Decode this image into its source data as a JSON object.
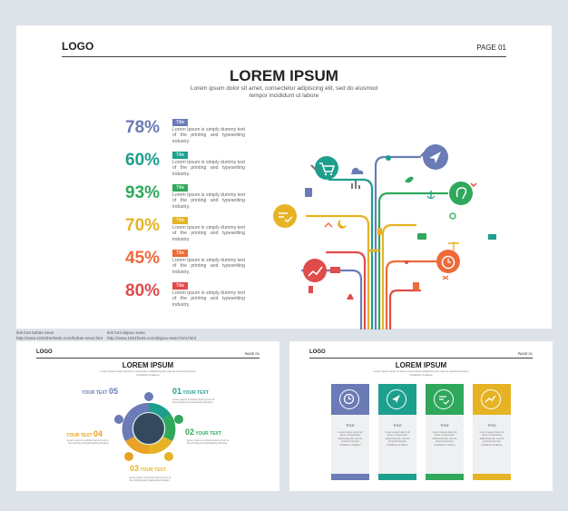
{
  "main": {
    "logo": "LOGO",
    "page": "PAGE 01",
    "title": "LOREM IPSUM",
    "subtitle": "Lorem ipsum dolor sit amet, consectetur adipiscing elit, sed do eiusmod tempor incididunt ut labore",
    "stats": [
      {
        "value": "78%",
        "tag": "Title",
        "text": "Lorem Ipsum is simply dummy text of the printing and typesetting industry.",
        "color": "#6b7bb6"
      },
      {
        "value": "60%",
        "tag": "Title",
        "text": "Lorem Ipsum is simply dummy text of the printing and typesetting industry.",
        "color": "#1d9f8e"
      },
      {
        "value": "93%",
        "tag": "Title",
        "text": "Lorem Ipsum is simply dummy text of the printing and typesetting industry.",
        "color": "#2fa85c"
      },
      {
        "value": "70%",
        "tag": "Title",
        "text": "Lorem Ipsum is simply dummy text of the printing and typesetting industry.",
        "color": "#e6b325"
      },
      {
        "value": "45%",
        "tag": "Title",
        "text": "Lorem Ipsum is simply dummy text of the printing and typesetting industry.",
        "color": "#ee6a3a"
      },
      {
        "value": "80%",
        "tag": "Title",
        "text": "Lorem Ipsum is simply dummy text of the printing and typesetting industry.",
        "color": "#e04b4b"
      }
    ]
  },
  "credits": {
    "left": "link font bebas neue\nhttp://www.1001freefonts.com/bebas-neue.font",
    "right": "link font dejavu sans\nhttp://www.1001fonts.com/dejavu-sans-font.html"
  },
  "slide_b": {
    "logo": "LOGO",
    "page": "PAGE 01",
    "title": "LOREM IPSUM",
    "subtitle": "Lorem ipsum dolor sit amet, consectetur adipiscing elit, sed do eiusmod tempor incididunt ut labore",
    "items": [
      {
        "num": "05",
        "label": "YOUR TEXT",
        "text": "Lorem Ipsum is simply dummy text of the printing and typesetting industry.",
        "color": "#6b7bb6"
      },
      {
        "num": "01",
        "label": "YOUR TEXT",
        "text": "Lorem Ipsum is simply dummy text of the printing and typesetting industry.",
        "color": "#1d9f8e"
      },
      {
        "num": "04",
        "label": "YOUR TEXT",
        "text": "Lorem Ipsum is simply dummy text of the printing and typesetting industry.",
        "color": "#e6a325"
      },
      {
        "num": "02",
        "label": "YOUR TEXT",
        "text": "Lorem Ipsum is simply dummy text of the printing and typesetting industry.",
        "color": "#2fa85c"
      },
      {
        "num": "03",
        "label": "YOUR TEXT",
        "text": "Lorem Ipsum is simply dummy text of the printing and typesetting industry.",
        "color": "#e6b325"
      }
    ]
  },
  "slide_c": {
    "logo": "LOGO",
    "page": "PAGE 01",
    "title": "LOREM IPSUM",
    "subtitle": "Lorem ipsum dolor sit amet, consectetur adipiscing elit, sed do eiusmod tempor incididunt ut labore",
    "columns": [
      {
        "title": "TITLE",
        "text": "Lorem ipsum dolor sit amet, consectetur adipiscing elit, sed do eiusmod tempor incididunt ut labore",
        "color": "#6b7bb6",
        "icon": "clock-icon"
      },
      {
        "title": "TITLE",
        "text": "Lorem ipsum dolor sit amet, consectetur adipiscing elit, sed do eiusmod tempor incididunt ut labore",
        "color": "#1d9f8e",
        "icon": "navigation-icon"
      },
      {
        "title": "TITLE",
        "text": "Lorem ipsum dolor sit amet, consectetur adipiscing elit, sed do eiusmod tempor incididunt ut labore",
        "color": "#2fa85c",
        "icon": "checklist-icon"
      },
      {
        "title": "TITLE",
        "text": "Lorem ipsum dolor sit amet, consectetur adipiscing elit, sed do eiusmod tempor incididunt ut labore",
        "color": "#e6b325",
        "icon": "growth-chart-icon"
      }
    ]
  }
}
